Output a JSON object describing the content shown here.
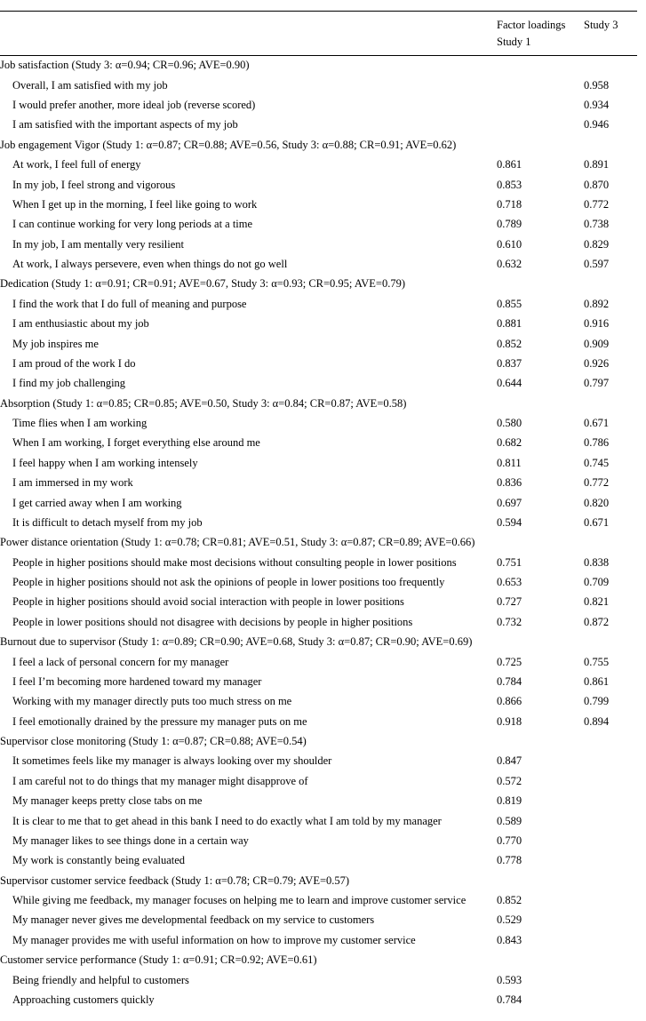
{
  "header": {
    "col1": "Factor loadings",
    "col1b": "Study 1",
    "col2": "Study 3"
  },
  "sections": [
    {
      "title": "Job satisfaction (Study 3: α=0.94; CR=0.96; AVE=0.90)",
      "items": [
        {
          "text": "Overall, I am satisfied with my job",
          "s1": "",
          "s3": "0.958"
        },
        {
          "text": "I would prefer another, more ideal job (reverse scored)",
          "s1": "",
          "s3": "0.934"
        },
        {
          "text": "I am satisfied with the important aspects of my job",
          "s1": "",
          "s3": "0.946"
        }
      ]
    },
    {
      "title": "Job engagement Vigor (Study 1: α=0.87; CR=0.88; AVE=0.56, Study 3: α=0.88; CR=0.91; AVE=0.62)",
      "items": [
        {
          "text": "At work, I feel full of energy",
          "s1": "0.861",
          "s3": "0.891"
        },
        {
          "text": "In my job, I feel strong and vigorous",
          "s1": "0.853",
          "s3": "0.870"
        },
        {
          "text": "When I get up in the morning, I feel like going to work",
          "s1": "0.718",
          "s3": "0.772"
        },
        {
          "text": "I can continue working for very long periods at a time",
          "s1": "0.789",
          "s3": "0.738"
        },
        {
          "text": "In my job, I am mentally very resilient",
          "s1": "0.610",
          "s3": "0.829"
        },
        {
          "text": "At work, I always persevere, even when things do not go well",
          "s1": "0.632",
          "s3": "0.597"
        }
      ]
    },
    {
      "title": "Dedication (Study 1: α=0.91; CR=0.91; AVE=0.67, Study 3: α=0.93; CR=0.95; AVE=0.79)",
      "items": [
        {
          "text": "I find the work that I do full of meaning and purpose",
          "s1": "0.855",
          "s3": "0.892"
        },
        {
          "text": "I am enthusiastic about my job",
          "s1": "0.881",
          "s3": "0.916"
        },
        {
          "text": "My job inspires me",
          "s1": "0.852",
          "s3": "0.909"
        },
        {
          "text": "I am proud of the work I do",
          "s1": "0.837",
          "s3": "0.926"
        },
        {
          "text": "I find my job challenging",
          "s1": "0.644",
          "s3": "0.797"
        }
      ]
    },
    {
      "title": "Absorption (Study 1: α=0.85; CR=0.85; AVE=0.50, Study 3: α=0.84; CR=0.87; AVE=0.58)",
      "items": [
        {
          "text": "Time flies when I am working",
          "s1": "0.580",
          "s3": "0.671"
        },
        {
          "text": "When I am working, I forget everything else around me",
          "s1": "0.682",
          "s3": "0.786"
        },
        {
          "text": "I feel happy when I am working intensely",
          "s1": "0.811",
          "s3": "0.745"
        },
        {
          "text": "I am immersed in my work",
          "s1": "0.836",
          "s3": "0.772"
        },
        {
          "text": "I get carried away when I am working",
          "s1": "0.697",
          "s3": "0.820"
        },
        {
          "text": "It is difficult to detach myself from my job",
          "s1": "0.594",
          "s3": "0.671"
        }
      ]
    },
    {
      "title": "Power distance orientation (Study 1: α=0.78; CR=0.81; AVE=0.51, Study 3: α=0.87; CR=0.89; AVE=0.66)",
      "items": [
        {
          "text": "People in higher positions should make most decisions without consulting people in lower positions",
          "s1": "0.751",
          "s3": "0.838"
        },
        {
          "text": "People in higher positions should not ask the opinions of people in lower positions too frequently",
          "s1": "0.653",
          "s3": "0.709"
        },
        {
          "text": "People in higher positions should avoid social interaction with people in lower positions",
          "s1": "0.727",
          "s3": "0.821"
        },
        {
          "text": "People in lower positions should not disagree with decisions by people in higher positions",
          "s1": "0.732",
          "s3": "0.872"
        }
      ]
    },
    {
      "title": "Burnout due to supervisor (Study 1: α=0.89; CR=0.90; AVE=0.68, Study 3: α=0.87; CR=0.90; AVE=0.69)",
      "items": [
        {
          "text": "I feel a lack of personal concern for my manager",
          "s1": "0.725",
          "s3": "0.755"
        },
        {
          "text": "I feel I’m becoming more hardened toward my manager",
          "s1": "0.784",
          "s3": "0.861"
        },
        {
          "text": "Working with my manager directly puts too much stress on me",
          "s1": "0.866",
          "s3": "0.799"
        },
        {
          "text": "I feel emotionally drained by the pressure my manager puts on me",
          "s1": "0.918",
          "s3": "0.894"
        }
      ]
    },
    {
      "title": "Supervisor close monitoring (Study 1: α=0.87; CR=0.88; AVE=0.54)",
      "items": [
        {
          "text": "It sometimes feels like my manager is always looking over my shoulder",
          "s1": "0.847",
          "s3": ""
        },
        {
          "text": "I am careful not to do things that my manager might disapprove of",
          "s1": "0.572",
          "s3": ""
        },
        {
          "text": "My manager keeps pretty close tabs on me",
          "s1": "0.819",
          "s3": ""
        },
        {
          "text": "It is clear to me that to get ahead in this bank I need to do exactly what I am told by my manager",
          "s1": "0.589",
          "s3": ""
        },
        {
          "text": "My manager likes to see things done in a certain way",
          "s1": "0.770",
          "s3": ""
        },
        {
          "text": "My work is constantly being evaluated",
          "s1": "0.778",
          "s3": ""
        }
      ]
    },
    {
      "title": "Supervisor customer service feedback (Study 1: α=0.78; CR=0.79; AVE=0.57)",
      "items": [
        {
          "text": "While giving me feedback, my manager focuses on helping me to learn and improve customer service",
          "s1": "0.852",
          "s3": ""
        },
        {
          "text": "My manager never gives me developmental feedback on my service to customers",
          "s1": "0.529",
          "s3": ""
        },
        {
          "text": "My manager provides me with useful information on how to improve my customer service",
          "s1": "0.843",
          "s3": ""
        }
      ]
    },
    {
      "title": "Customer service performance (Study 1: α=0.91; CR=0.92; AVE=0.61)",
      "items": [
        {
          "text": "Being friendly and helpful to customers",
          "s1": "0.593",
          "s3": ""
        },
        {
          "text": "Approaching customers quickly",
          "s1": "0.784",
          "s3": ""
        }
      ]
    }
  ]
}
